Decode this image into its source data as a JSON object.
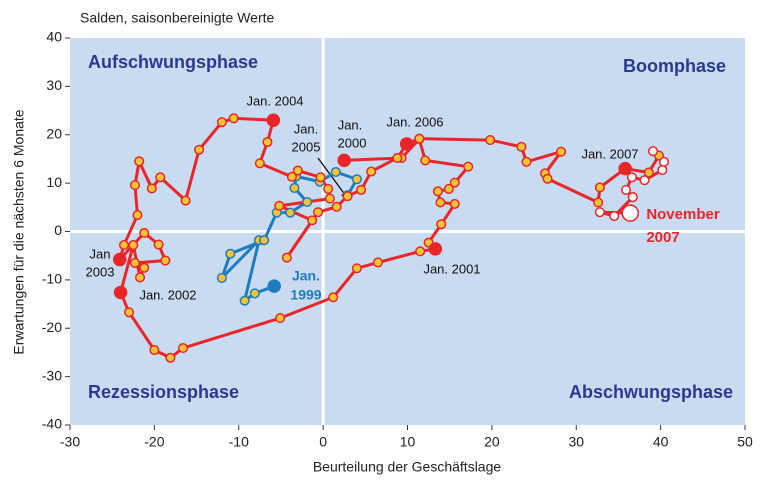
{
  "chart_data": {
    "type": "scatter-path",
    "subtitle": "Salden, saisonbereinigte Werte",
    "xlabel": "Beurteilung der Geschäftslage",
    "ylabel": "Erwartungen für die nächsten 6 Monate",
    "xlim": [
      -30,
      50
    ],
    "xticks": [
      -30,
      -20,
      -10,
      0,
      10,
      20,
      30,
      40,
      50
    ],
    "ylim": [
      -40,
      40
    ],
    "yticks": [
      -40,
      -30,
      -20,
      -10,
      0,
      10,
      20,
      30,
      40
    ],
    "background": "#c9dbf0",
    "series": [
      {
        "color": "#1f7bbf",
        "marker_color": "#f9c331",
        "x": [
          -5.8,
          -8.1,
          -9.3,
          -7.6,
          -12.0,
          -11.0,
          -7.0,
          -5.5,
          -3.9,
          -1.9,
          -3.4,
          -3.2,
          -0.4,
          1.5,
          4.0,
          2.9
        ],
        "values": [
          -11.3,
          -12.8,
          -14.3,
          -1.8,
          -9.6,
          -4.6,
          -1.8,
          3.9,
          3.9,
          6.1,
          9.0,
          11.4,
          10.3,
          12.3,
          10.8,
          7.5
        ]
      },
      {
        "color": "#e8262a",
        "marker_color": "#f9c331",
        "x": [
          2.5,
          9.3,
          11.4,
          12.1,
          17.2,
          15.6,
          14.9,
          13.6,
          13.9,
          15.6,
          14.0,
          12.5,
          13.3,
          11.5,
          6.5,
          4.0,
          1.2,
          -5.1,
          -16.6,
          -18.1,
          -20.0,
          -23.0,
          -24.0,
          -22.5,
          -21.7,
          -21.2,
          -22.3,
          -18.7,
          -19.5,
          -21.2,
          -24.1,
          -23.6,
          -22.0,
          -22.3,
          -21.8,
          -20.3,
          -19.3,
          -16.3,
          -14.7,
          -12.0,
          -10.6,
          -5.9,
          -6.6,
          -7.5,
          -3.7,
          -3.0,
          -0.3,
          0.6,
          0.8,
          -5.2,
          -1.3,
          -4.3,
          -0.6,
          1.6,
          2.9,
          4.5,
          5.7,
          8.8,
          9.9,
          11.4,
          19.8,
          23.5,
          24.1,
          28.2,
          26.3,
          26.6,
          32.6,
          32.8,
          35.8,
          38.6,
          39.8
        ],
        "values": [
          14.7,
          15.2,
          19.1,
          14.7,
          13.4,
          10.1,
          8.8,
          8.3,
          6.0,
          5.7,
          1.5,
          -2.3,
          -3.6,
          -4.1,
          -6.4,
          -7.6,
          -13.6,
          -17.9,
          -24.1,
          -26.1,
          -24.5,
          -16.7,
          -12.6,
          -2.8,
          -9.5,
          -7.5,
          -6.5,
          -6.0,
          -2.7,
          -0.3,
          -5.8,
          -2.8,
          3.4,
          9.6,
          14.5,
          8.9,
          11.2,
          6.4,
          16.9,
          22.6,
          23.4,
          23.0,
          18.5,
          14.1,
          11.3,
          12.6,
          11.2,
          8.8,
          6.8,
          5.3,
          2.3,
          -5.4,
          4.0,
          5.1,
          7.3,
          8.6,
          12.4,
          15.2,
          18.1,
          19.2,
          18.9,
          17.5,
          14.4,
          16.5,
          12.0,
          10.9,
          6.0,
          9.1,
          13.0,
          12.2,
          15.7
        ]
      },
      {
        "color": "#e8262a",
        "marker_color": "#ffffff",
        "x": [
          39.1,
          40.4,
          40.2,
          38.1,
          36.6,
          35.9,
          36.7,
          34.5,
          32.8,
          36.4
        ],
        "values": [
          16.6,
          14.4,
          12.7,
          10.6,
          11.2,
          8.6,
          7.1,
          3.2,
          4.0,
          3.8
        ]
      }
    ],
    "annotations": [
      "Aufschwungsphase",
      "Boomphase",
      "Rezessionsphase",
      "Abschwungsphase",
      "Jan. 2004",
      "Jan.",
      "2005",
      "Jan.",
      "2000",
      "Jan. 2006",
      "Jan. 2007",
      "Jan",
      "2003",
      "Jan. 2002",
      "Jan. 2001",
      "Jan.",
      "1999",
      "November",
      "2007"
    ]
  }
}
